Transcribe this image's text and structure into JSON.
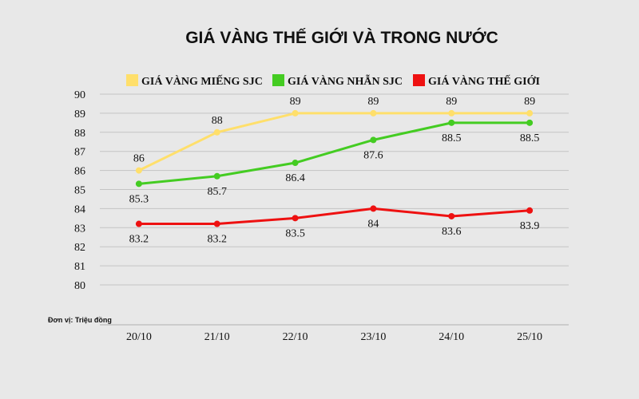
{
  "chart_data": {
    "type": "line",
    "title": "GIÁ VÀNG THẾ GIỚI VÀ TRONG NƯỚC",
    "unit_note": "Đơn vị: Triệu đồng",
    "categories": [
      "20/10",
      "21/10",
      "22/10",
      "23/10",
      "24/10",
      "25/10"
    ],
    "ylim": [
      80,
      90
    ],
    "yticks": [
      "80",
      "81",
      "82",
      "83",
      "84",
      "85",
      "86",
      "87",
      "88",
      "89",
      "90"
    ],
    "grid": true,
    "legend_position": "top",
    "series": [
      {
        "name": "GIÁ VÀNG MIẾNG SJC",
        "color": "#ffdf6b",
        "values": [
          86,
          88,
          89,
          89,
          89,
          89
        ],
        "labels": [
          "86",
          "88",
          "89",
          "89",
          "89",
          "89"
        ],
        "label_position": "above"
      },
      {
        "name": "GIÁ VÀNG NHẪN SJC",
        "color": "#44cc22",
        "values": [
          85.3,
          85.7,
          86.4,
          87.6,
          88.5,
          88.5
        ],
        "labels": [
          "85.3",
          "85.7",
          "86.4",
          "87.6",
          "88.5",
          "88.5"
        ],
        "label_position": "below"
      },
      {
        "name": "GIÁ VÀNG THẾ GIỚI",
        "color": "#ee1111",
        "values": [
          83.2,
          83.2,
          83.5,
          84,
          83.6,
          83.9
        ],
        "labels": [
          "83.2",
          "83.2",
          "83.5",
          "84",
          "83.6",
          "83.9"
        ],
        "label_position": "below"
      }
    ]
  }
}
